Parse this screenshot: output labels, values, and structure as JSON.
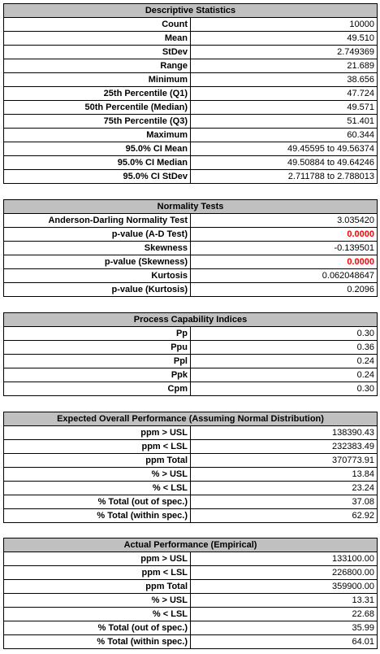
{
  "descriptive": {
    "title": "Descriptive Statistics",
    "rows": [
      {
        "label": "Count",
        "value": "10000"
      },
      {
        "label": "Mean",
        "value": "49.510"
      },
      {
        "label": "StDev",
        "value": "2.749369"
      },
      {
        "label": "Range",
        "value": "21.689"
      },
      {
        "label": "Minimum",
        "value": "38.656"
      },
      {
        "label": "25th Percentile (Q1)",
        "value": "47.724"
      },
      {
        "label": "50th Percentile (Median)",
        "value": "49.571"
      },
      {
        "label": "75th Percentile (Q3)",
        "value": "51.401"
      },
      {
        "label": "Maximum",
        "value": "60.344"
      },
      {
        "label": "95.0% CI Mean",
        "value": "49.45595 to 49.56374"
      },
      {
        "label": "95.0% CI Median",
        "value": "49.50884 to 49.64246"
      },
      {
        "label": "95.0% CI StDev",
        "value": "2.711788 to 2.788013"
      }
    ]
  },
  "normality": {
    "title": "Normality Tests",
    "rows": [
      {
        "label": "Anderson-Darling Normality Test",
        "value": "3.035420"
      },
      {
        "label": "p-value (A-D Test)",
        "value": "0.0000"
      },
      {
        "label": "Skewness",
        "value": "-0.139501"
      },
      {
        "label": "p-value (Skewness)",
        "value": "0.0000"
      },
      {
        "label": "Kurtosis",
        "value": "0.062048647"
      },
      {
        "label": "p-value (Kurtosis)",
        "value": "0.2096"
      }
    ]
  },
  "capability": {
    "title": "Process Capability Indices",
    "rows": [
      {
        "label": "Pp",
        "value": "0.30"
      },
      {
        "label": "Ppu",
        "value": "0.36"
      },
      {
        "label": "Ppl",
        "value": "0.24"
      },
      {
        "label": "Ppk",
        "value": "0.24"
      },
      {
        "label": "Cpm",
        "value": "0.30"
      }
    ]
  },
  "expected": {
    "title": "Expected Overall Performance (Assuming Normal Distribution)",
    "rows": [
      {
        "label": "ppm > USL",
        "value": "138390.43"
      },
      {
        "label": "ppm < LSL",
        "value": "232383.49"
      },
      {
        "label": "ppm Total",
        "value": "370773.91"
      },
      {
        "label": "% > USL",
        "value": "13.84"
      },
      {
        "label": "% < LSL",
        "value": "23.24"
      },
      {
        "label": "% Total (out of spec.)",
        "value": "37.08"
      },
      {
        "label": "% Total  (within spec.)",
        "value": "62.92"
      }
    ]
  },
  "actual": {
    "title": "Actual Performance (Empirical)",
    "rows": [
      {
        "label": "ppm > USL",
        "value": "133100.00"
      },
      {
        "label": "ppm < LSL",
        "value": "226800.00"
      },
      {
        "label": "ppm Total",
        "value": "359900.00"
      },
      {
        "label": "% > USL",
        "value": "13.31"
      },
      {
        "label": "% < LSL",
        "value": "22.68"
      },
      {
        "label": "% Total (out of spec.)",
        "value": "35.99"
      },
      {
        "label": "% Total (within spec.)",
        "value": "64.01"
      }
    ]
  },
  "colors": {
    "header_fill": "#c0c0c0",
    "alert_text": "#ff0000"
  }
}
